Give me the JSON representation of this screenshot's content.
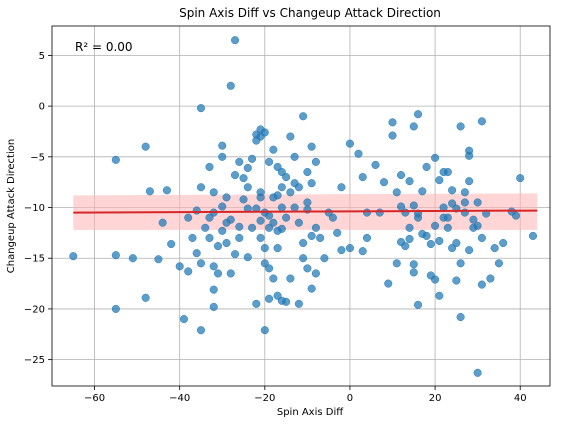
{
  "chart_data": {
    "type": "scatter",
    "title": "Spin Axis Diff vs Changeup Attack Direction",
    "xlabel": "Spin Axis Diff",
    "ylabel": "Changeup Attack Direction",
    "annotation": "R² = 0.00",
    "xlim": [
      -70,
      47
    ],
    "ylim": [
      -27.6,
      7.9
    ],
    "xticks": [
      -60,
      -40,
      -20,
      0,
      20,
      40
    ],
    "yticks": [
      5,
      0,
      -5,
      -10,
      -15,
      -20,
      -25
    ],
    "grid": true,
    "point_color": "#1f77b4",
    "regression": {
      "x": [
        -65,
        44
      ],
      "y": [
        -10.5,
        -10.3
      ],
      "ci_lower": [
        -12.2,
        -12.2
      ],
      "ci_upper": [
        -8.8,
        -8.6
      ],
      "line_color": "#d62728",
      "band_color": "#ffb3b3"
    },
    "points": [
      [
        -27,
        6.5
      ],
      [
        -28,
        2.0
      ],
      [
        -35,
        -0.2
      ],
      [
        -11,
        -1.0
      ],
      [
        -65,
        -14.8
      ],
      [
        -55,
        -5.3
      ],
      [
        -48,
        -4.0
      ],
      [
        -47,
        -8.4
      ],
      [
        -55,
        -20.0
      ],
      [
        -55,
        -14.7
      ],
      [
        -51,
        -15.0
      ],
      [
        -48,
        -18.9
      ],
      [
        -43,
        -8.3
      ],
      [
        -44,
        -11.5
      ],
      [
        -45,
        -15.1
      ],
      [
        -42,
        -13.6
      ],
      [
        -40,
        -15.8
      ],
      [
        -39,
        -21.0
      ],
      [
        -38,
        -16.3
      ],
      [
        -36,
        -10.3
      ],
      [
        -35,
        -22.1
      ],
      [
        -35,
        -8.0
      ],
      [
        -35,
        -15.5
      ],
      [
        -33,
        -6.0
      ],
      [
        -32,
        -8.5
      ],
      [
        -32,
        -10.5
      ],
      [
        -33,
        -13.0
      ],
      [
        -33,
        -11.0
      ],
      [
        -32,
        -15.8
      ],
      [
        -32,
        -18.1
      ],
      [
        -31,
        -16.5
      ],
      [
        -32,
        -19.8
      ],
      [
        -30,
        -3.9
      ],
      [
        -30,
        -5.0
      ],
      [
        -30,
        -9.9
      ],
      [
        -29,
        -13.5
      ],
      [
        -29,
        -11.5
      ],
      [
        -28,
        -16.5
      ],
      [
        -27,
        -6.8
      ],
      [
        -26,
        -5.5
      ],
      [
        -26,
        -11.9
      ],
      [
        -25,
        -7.1
      ],
      [
        -24,
        -10.1
      ],
      [
        -24,
        -14.9
      ],
      [
        -24,
        -6.1
      ],
      [
        -23,
        -5.2
      ],
      [
        -22,
        -2.8
      ],
      [
        -22,
        -3.4
      ],
      [
        -21,
        -2.3
      ],
      [
        -21,
        -3.0
      ],
      [
        -20,
        -2.6
      ],
      [
        -19,
        -5.5
      ],
      [
        -18,
        -4.3
      ],
      [
        -17,
        -6.0
      ],
      [
        -17,
        -8.8
      ],
      [
        -16,
        -10.0
      ],
      [
        -16,
        -12.1
      ],
      [
        -15,
        -11.0
      ],
      [
        -14,
        -3.0
      ],
      [
        -13,
        -5.0
      ],
      [
        -13,
        -7.6
      ],
      [
        -12,
        -8.0
      ],
      [
        -10,
        -9.5
      ],
      [
        -10,
        -6.5
      ],
      [
        -9,
        -4.0
      ],
      [
        -9,
        -7.6
      ],
      [
        -8,
        -5.5
      ],
      [
        -8,
        -12.0
      ],
      [
        -7,
        -13.0
      ],
      [
        -6,
        -15.0
      ],
      [
        -5,
        -10.5
      ],
      [
        -4,
        -11.0
      ],
      [
        -3,
        -12.5
      ],
      [
        -2,
        -8.0
      ],
      [
        -22,
        -10.1
      ],
      [
        -21,
        -11.3
      ],
      [
        -21,
        -13.0
      ],
      [
        -20,
        -14.0
      ],
      [
        -20,
        -15.5
      ],
      [
        -19,
        -16.0
      ],
      [
        -19,
        -12.0
      ],
      [
        -18,
        -17.0
      ],
      [
        -17,
        -18.7
      ],
      [
        -16,
        -19.2
      ],
      [
        -15,
        -19.3
      ],
      [
        -14,
        -17.0
      ],
      [
        -12,
        -19.5
      ],
      [
        -11,
        -15.0
      ],
      [
        -10,
        -16.0
      ],
      [
        -9,
        -18.0
      ],
      [
        -8,
        -16.5
      ],
      [
        -22,
        -19.5
      ],
      [
        -20,
        -22.1
      ],
      [
        -19,
        -19.0
      ],
      [
        -21,
        -8.5
      ],
      [
        -21,
        -9.0
      ],
      [
        -20,
        -10.5
      ],
      [
        -19,
        -10.8
      ],
      [
        -18,
        -9.0
      ],
      [
        -18,
        -11.5
      ],
      [
        -17,
        -12.3
      ],
      [
        -17,
        -14.0
      ],
      [
        -16,
        -8.0
      ],
      [
        -16,
        -6.5
      ],
      [
        -15,
        -7.0
      ],
      [
        -14,
        -8.5
      ],
      [
        -13,
        -10.0
      ],
      [
        -12,
        -11.5
      ],
      [
        -11,
        -13.5
      ],
      [
        -10,
        -10.2
      ],
      [
        -9,
        -12.8
      ],
      [
        -23,
        -12.0
      ],
      [
        -24,
        -8.0
      ],
      [
        -25,
        -9.2
      ],
      [
        -26,
        -13.0
      ],
      [
        -27,
        -14.6
      ],
      [
        -28,
        -11.2
      ],
      [
        -29,
        -9.0
      ],
      [
        -30,
        -12.3
      ],
      [
        -31,
        -13.8
      ],
      [
        -34,
        -12.0
      ],
      [
        -36,
        -14.5
      ],
      [
        -37,
        -13.0
      ],
      [
        -38,
        -11.0
      ],
      [
        -2,
        -14.2
      ],
      [
        0,
        -14.0
      ],
      [
        0,
        -3.7
      ],
      [
        2,
        -4.7
      ],
      [
        3,
        -7.0
      ],
      [
        3,
        -14.3
      ],
      [
        4,
        -13.0
      ],
      [
        4,
        -10.5
      ],
      [
        6,
        -5.8
      ],
      [
        8,
        -7.5
      ],
      [
        9,
        -17.5
      ],
      [
        10,
        -1.6
      ],
      [
        10,
        -2.9
      ],
      [
        11,
        -8.5
      ],
      [
        11,
        -15.5
      ],
      [
        12,
        -13.4
      ],
      [
        12,
        -6.8
      ],
      [
        13,
        -10.5
      ],
      [
        13,
        -13.8
      ],
      [
        14,
        -7.4
      ],
      [
        14,
        -12.0
      ],
      [
        14,
        -13.1
      ],
      [
        15,
        -2.0
      ],
      [
        15,
        -9.8
      ],
      [
        15,
        -15.6
      ],
      [
        15,
        -16.4
      ],
      [
        16,
        -11.0
      ],
      [
        16,
        -19.6
      ],
      [
        16,
        -0.8
      ],
      [
        16,
        -10.6
      ],
      [
        17,
        -8.4
      ],
      [
        18,
        -6.0
      ],
      [
        18,
        -12.8
      ],
      [
        19,
        -13.6
      ],
      [
        19,
        -16.7
      ],
      [
        20,
        -17.1
      ],
      [
        20,
        -5.1
      ],
      [
        21,
        -7.3
      ],
      [
        21,
        -13.3
      ],
      [
        21,
        -18.7
      ],
      [
        22,
        -6.5
      ],
      [
        22,
        -10.0
      ],
      [
        23,
        -11.0
      ],
      [
        23,
        -12.0
      ],
      [
        24,
        -9.6
      ],
      [
        24,
        -14.0
      ],
      [
        25,
        -10.1
      ],
      [
        25,
        -17.2
      ],
      [
        25,
        -13.5
      ],
      [
        26,
        -2.0
      ],
      [
        26,
        -20.8
      ],
      [
        27,
        -10.5
      ],
      [
        27,
        -8.5
      ],
      [
        27,
        -9.5
      ],
      [
        28,
        -4.4
      ],
      [
        28,
        -4.9
      ],
      [
        28,
        -7.4
      ],
      [
        28,
        -14.2
      ],
      [
        29,
        -11.2
      ],
      [
        29,
        -12.0
      ],
      [
        30,
        -26.3
      ],
      [
        30,
        -9.5
      ],
      [
        31,
        -13.0
      ],
      [
        31,
        -17.6
      ],
      [
        31,
        -1.5
      ],
      [
        32,
        -10.6
      ],
      [
        33,
        -17.0
      ],
      [
        35,
        -15.5
      ],
      [
        36,
        -13.5
      ],
      [
        38,
        -10.4
      ],
      [
        39,
        -10.8
      ],
      [
        40,
        -7.1
      ],
      [
        43,
        -12.8
      ],
      [
        20,
        -11.8
      ],
      [
        22,
        -11.0
      ],
      [
        23,
        -6.5
      ],
      [
        24,
        -8.3
      ],
      [
        12,
        -9.9
      ],
      [
        17,
        -12.6
      ],
      [
        26,
        -15.5
      ],
      [
        30,
        -11.8
      ],
      [
        34,
        -14.0
      ],
      [
        7,
        -10.5
      ]
    ]
  }
}
